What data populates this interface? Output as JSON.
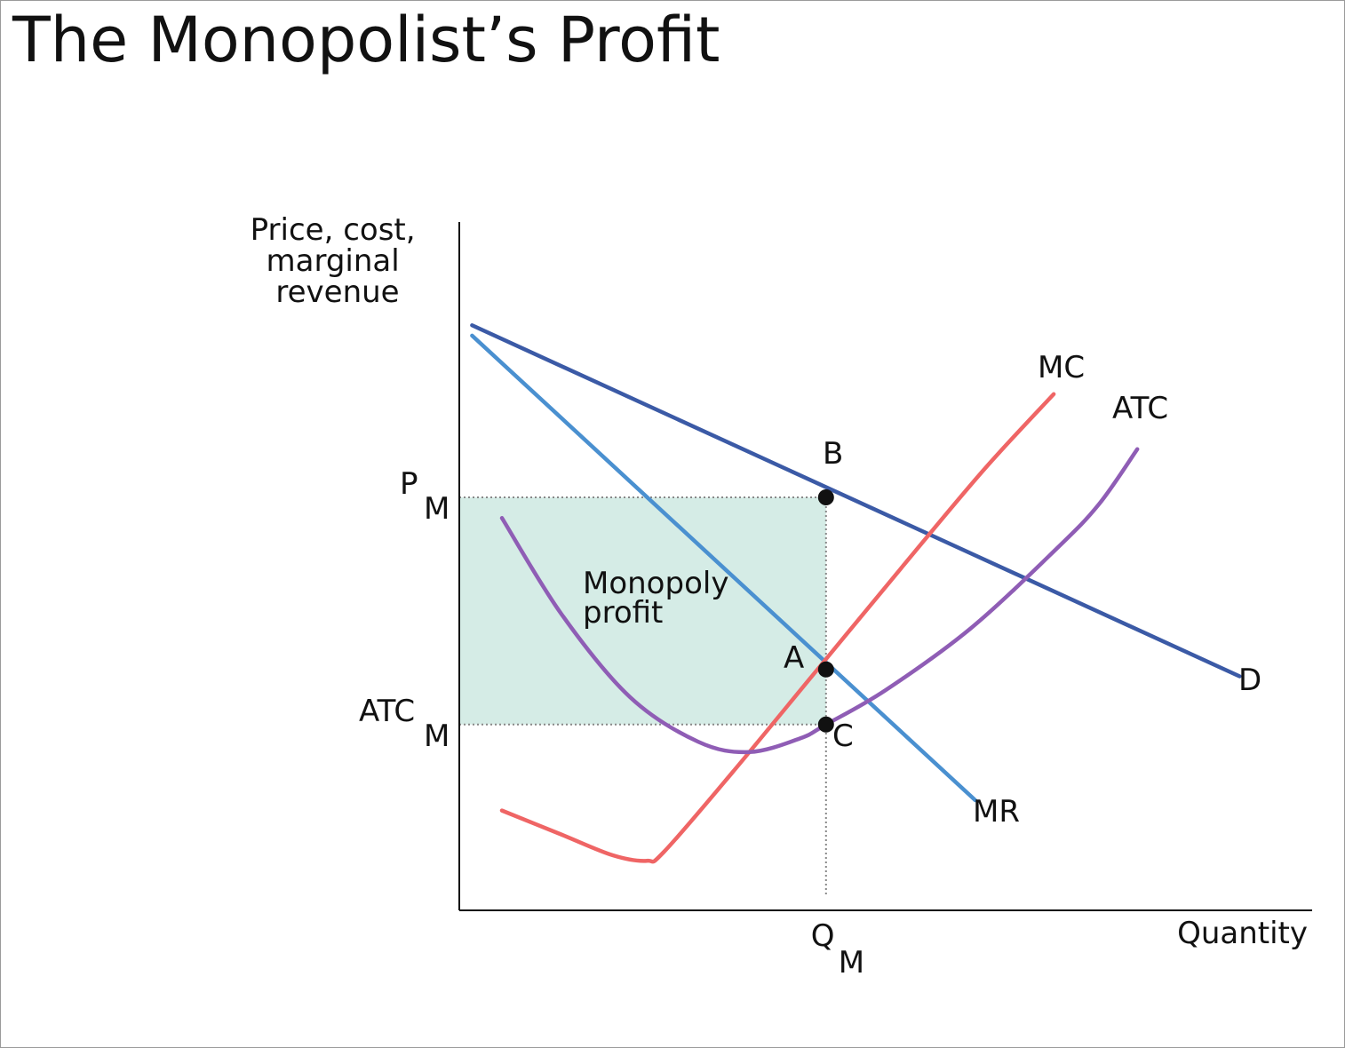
{
  "slide": {
    "title": "The Monopolist’s Profit"
  },
  "chart_data": {
    "type": "line",
    "title": "The Monopolist’s Profit",
    "ylabel_lines": [
      "Price, cost,",
      "marginal",
      "revenue"
    ],
    "xlabel": "Quantity",
    "xlim": [
      0,
      10
    ],
    "ylim": [
      0,
      10
    ],
    "colors": {
      "D": "#3b5aa6",
      "MR": "#4a90d0",
      "MC": "#ef6565",
      "ATC": "#8f5db5",
      "profit_fill": "#d5ece6",
      "axis": "#111111",
      "guide": "#888888",
      "point": "#111111"
    },
    "series": [
      {
        "name": "D",
        "x": [
          0.15,
          9.15
        ],
        "y": [
          8.5,
          3.4
        ]
      },
      {
        "name": "MR",
        "x": [
          0.15,
          6.05
        ],
        "y": [
          8.35,
          1.6
        ]
      },
      {
        "name": "MC",
        "x": [
          0.5,
          1.2,
          1.8,
          2.2,
          2.4,
          3.2,
          4.2,
          5.2,
          6.15,
          6.97
        ],
        "y": [
          1.45,
          1.1,
          0.8,
          0.72,
          0.85,
          2.0,
          3.5,
          5.0,
          6.4,
          7.5
        ]
      },
      {
        "name": "ATC",
        "x": [
          0.5,
          1.2,
          2.0,
          2.8,
          3.4,
          4.0,
          4.3,
          5.0,
          6.0,
          7.0,
          7.5,
          7.95
        ],
        "y": [
          5.7,
          4.3,
          3.1,
          2.45,
          2.3,
          2.5,
          2.7,
          3.2,
          4.1,
          5.25,
          5.9,
          6.7
        ]
      }
    ],
    "points": [
      {
        "label": "B",
        "x": 4.3,
        "y": 6.0
      },
      {
        "label": "A",
        "x": 4.3,
        "y": 3.5
      },
      {
        "label": "C",
        "x": 4.3,
        "y": 2.7
      }
    ],
    "ticks": {
      "PM": {
        "main": "P",
        "sub": "M",
        "y": 6.0
      },
      "ATCM": {
        "main": "ATC",
        "sub": "M",
        "y": 2.7
      },
      "QM": {
        "main": "Q",
        "sub": "M",
        "x": 4.3
      }
    },
    "profit_region": {
      "x": [
        0,
        4.3
      ],
      "y": [
        2.7,
        6.0
      ]
    },
    "annotation_lines": [
      "Monopoly",
      "profit"
    ],
    "grid": false,
    "legend": "none"
  }
}
